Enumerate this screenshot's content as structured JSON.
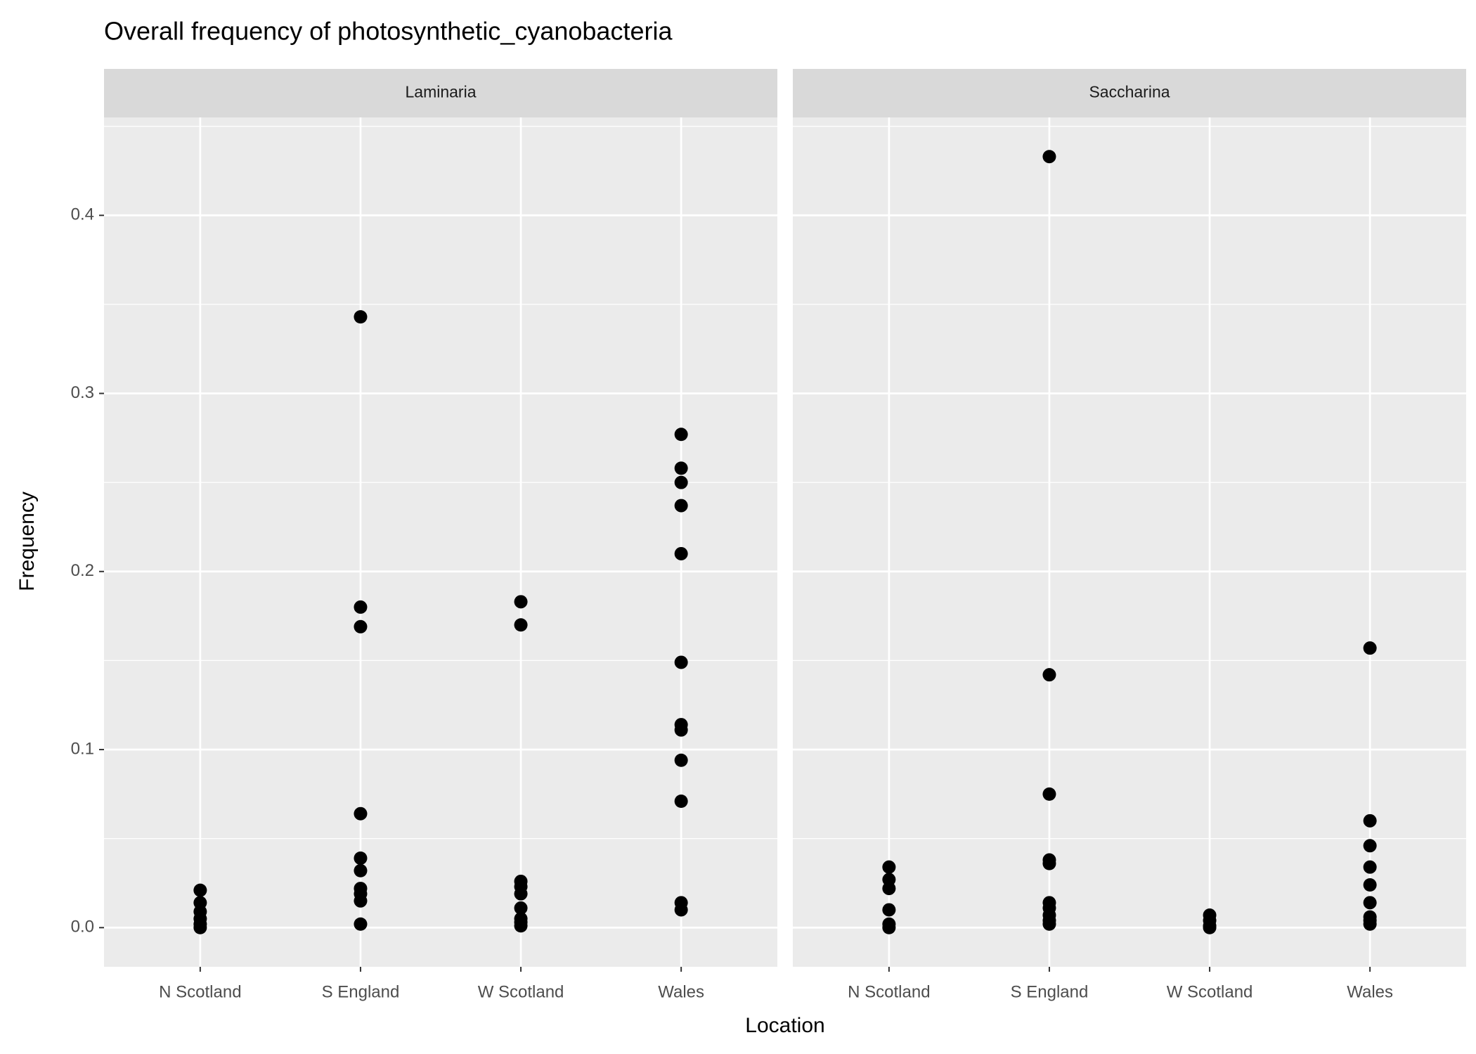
{
  "chart_data": {
    "type": "scatter",
    "title": "Overall frequency of photosynthetic_cyanobacteria",
    "x_label": "Location",
    "y_label": "Frequency",
    "categories": [
      "N Scotland",
      "S England",
      "W Scotland",
      "Wales"
    ],
    "color": "#000000",
    "grid": true,
    "ylim": [
      -0.022,
      0.455
    ],
    "yticks": [
      0.0,
      0.1,
      0.2,
      0.3,
      0.4
    ],
    "yticklabels": [
      "0.0",
      "0.1",
      "0.2",
      "0.3",
      "0.4"
    ],
    "panels": [
      {
        "name": "Laminaria",
        "values": [
          [
            0.021,
            0.014,
            0.009,
            0.005,
            0.002,
            0.0
          ],
          [
            0.343,
            0.18,
            0.169,
            0.064,
            0.039,
            0.032,
            0.022,
            0.019,
            0.015,
            0.002
          ],
          [
            0.183,
            0.17,
            0.026,
            0.023,
            0.019,
            0.011,
            0.005,
            0.003,
            0.001
          ],
          [
            0.277,
            0.258,
            0.25,
            0.237,
            0.21,
            0.149,
            0.114,
            0.111,
            0.094,
            0.071,
            0.014,
            0.01
          ]
        ]
      },
      {
        "name": "Saccharina",
        "values": [
          [
            0.034,
            0.027,
            0.022,
            0.01,
            0.002,
            0.0
          ],
          [
            0.433,
            0.142,
            0.075,
            0.038,
            0.036,
            0.014,
            0.011,
            0.007,
            0.004,
            0.002
          ],
          [
            0.007,
            0.004,
            0.001,
            0.0
          ],
          [
            0.157,
            0.06,
            0.046,
            0.034,
            0.024,
            0.014,
            0.006,
            0.004,
            0.002
          ]
        ]
      }
    ]
  }
}
